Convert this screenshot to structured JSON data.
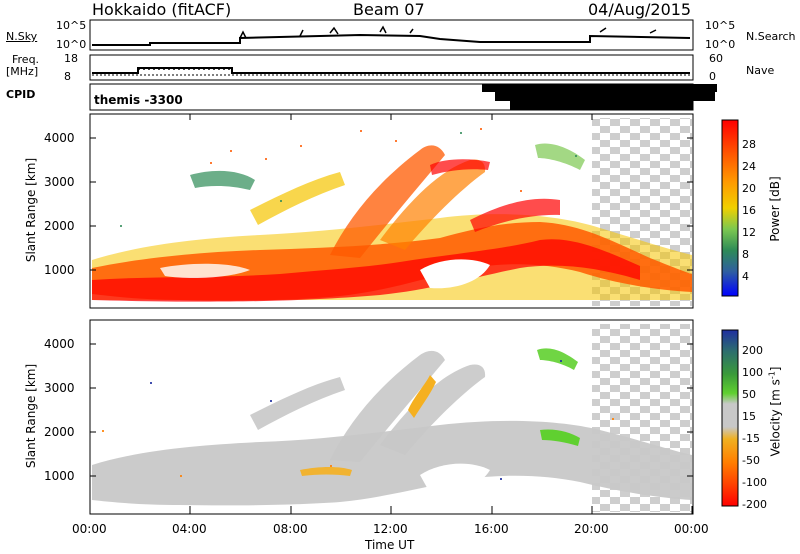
{
  "header": {
    "station": "Hokkaido (fitACF)",
    "beam": "Beam 07",
    "date": "04/Aug/2015"
  },
  "top_panels": {
    "nsky_label": "N.Sky",
    "nsky_ticks": [
      "10^5",
      "10^0"
    ],
    "nsearch_label": "N.Search",
    "nsearch_ticks": [
      "10^5",
      "10^0"
    ],
    "freq_label_1": "Freq.",
    "freq_label_2": "[MHz]",
    "freq_ticks": [
      "18",
      "8"
    ],
    "nave_label": "Nave",
    "nave_ticks": [
      "60",
      "0"
    ],
    "cpid_label": "CPID",
    "cpid_text": "themis -3300"
  },
  "power_panel": {
    "ylabel": "Slant Range [km]",
    "yticks": [
      "4000",
      "3000",
      "2000",
      "1000"
    ],
    "colorbar_label": "Power [dB]",
    "colorbar_ticks": [
      "28",
      "24",
      "20",
      "16",
      "12",
      "8",
      "4"
    ],
    "colorbar_colors": [
      "#ff0000",
      "#ff5500",
      "#ff9900",
      "#f5d000",
      "#7fc850",
      "#2e8b57",
      "#2f5fa0",
      "#0000ff"
    ]
  },
  "velocity_panel": {
    "ylabel": "Slant Range [km]",
    "yticks": [
      "4000",
      "3000",
      "2000",
      "1000"
    ],
    "colorbar_label": "Velocity [m s",
    "colorbar_sup": "-1",
    "colorbar_label_end": "]",
    "colorbar_ticks": [
      "200",
      "100",
      "50",
      "15",
      "-15",
      "-50",
      "-100",
      "-200"
    ],
    "colorbar_colors": [
      "#1f2fa0",
      "#2d6e6e",
      "#3a9a3a",
      "#60d030",
      "#c8c8c8",
      "#f0b020",
      "#ff7f00",
      "#ff4000",
      "#ff0000"
    ]
  },
  "xaxis": {
    "label": "Time UT",
    "ticks": [
      "00:00",
      "04:00",
      "08:00",
      "12:00",
      "16:00",
      "20:00",
      "00:00"
    ]
  },
  "chart_data": [
    {
      "type": "heatmap",
      "title": "Power",
      "xlabel": "Time UT",
      "ylabel": "Slant Range [km]",
      "x_range_hours": [
        0,
        24
      ],
      "ylim": [
        200,
        4600
      ],
      "colorbar": {
        "label": "Power [dB]",
        "ticks": [
          28,
          24,
          20,
          16,
          12,
          8,
          4
        ]
      },
      "description_regions": [
        {
          "t_start": 0,
          "t_end": 24,
          "range_min": 500,
          "range_max": 2400,
          "value_db": 24
        },
        {
          "t_start": 8,
          "t_end": 16,
          "range_min": 1500,
          "range_max": 3600,
          "value_db": 22
        },
        {
          "t_start": 0,
          "t_end": 8,
          "range_min": 400,
          "range_max": 1000,
          "value_db": 30
        }
      ]
    },
    {
      "type": "heatmap",
      "title": "Velocity",
      "xlabel": "Time UT",
      "ylabel": "Slant Range [km]",
      "x_range_hours": [
        0,
        24
      ],
      "ylim": [
        200,
        4600
      ],
      "colorbar": {
        "label": "Velocity [m s-1]",
        "ticks": [
          200,
          100,
          50,
          15,
          -15,
          -50,
          -100,
          -200
        ]
      },
      "description_regions": [
        {
          "t_start": 0,
          "t_end": 24,
          "range_min": 500,
          "range_max": 2400,
          "value_ms": 0
        },
        {
          "t_start": 12.5,
          "t_end": 14,
          "range_min": 2500,
          "range_max": 3300,
          "value_ms": -50
        },
        {
          "t_start": 17,
          "t_end": 19,
          "range_min": 1700,
          "range_max": 2000,
          "value_ms": 50
        }
      ]
    }
  ]
}
